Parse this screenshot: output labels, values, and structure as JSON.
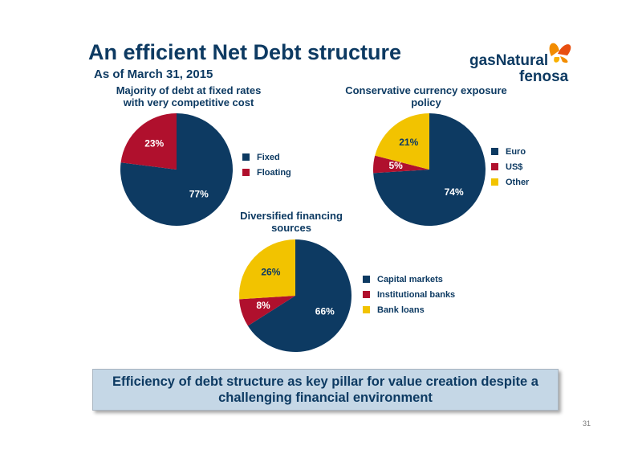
{
  "page": {
    "title": "An efficient Net Debt structure",
    "subtitle": "As of March 31, 2015",
    "logo": {
      "line1": "gasNatural",
      "line2": "fenosa"
    },
    "banner": "Efficiency of debt structure as key pillar for value creation despite a challenging financial environment",
    "page_number": "31"
  },
  "chart_data": [
    {
      "type": "pie",
      "title": "Majority of debt at fixed rates with very competitive cost",
      "categories": [
        "Fixed",
        "Floating"
      ],
      "values": [
        77,
        23
      ],
      "labels": [
        "77%",
        "23%"
      ],
      "colors": [
        "#0d3a62",
        "#b0102d"
      ],
      "label_colors": [
        "#ffffff",
        "#ffffff"
      ],
      "legend": "right"
    },
    {
      "type": "pie",
      "title": "Conservative currency exposure policy",
      "categories": [
        "Euro",
        "US$",
        "Other"
      ],
      "values": [
        74,
        5,
        21
      ],
      "labels": [
        "74%",
        "5%",
        "21%"
      ],
      "colors": [
        "#0d3a62",
        "#b0102d",
        "#f2c300"
      ],
      "label_colors": [
        "#ffffff",
        "#ffffff",
        "#0d3a62"
      ],
      "legend": "right"
    },
    {
      "type": "pie",
      "title": "Diversified financing sources",
      "categories": [
        "Capital markets",
        "Institutional banks",
        "Bank loans"
      ],
      "values": [
        66,
        8,
        26
      ],
      "labels": [
        "66%",
        "8%",
        "26%"
      ],
      "colors": [
        "#0d3a62",
        "#b0102d",
        "#f2c300"
      ],
      "label_colors": [
        "#ffffff",
        "#ffffff",
        "#0d3a62"
      ],
      "legend": "right"
    }
  ]
}
